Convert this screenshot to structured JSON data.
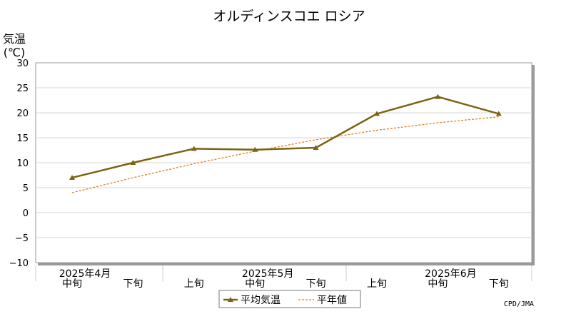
{
  "chart_data": {
    "type": "line",
    "title": "オルディンスコエ ロシア",
    "ylabel_line1": "気温",
    "ylabel_line2": "(℃)",
    "ylim": [
      -10,
      30
    ],
    "yticks": [
      30,
      25,
      20,
      15,
      10,
      5,
      0,
      -5,
      -10
    ],
    "x": [
      "中旬",
      "下旬",
      "上旬",
      "中旬",
      "下旬",
      "上旬",
      "中旬",
      "下旬"
    ],
    "month_labels": [
      "2025年4月",
      "2025年5月",
      "2025年6月"
    ],
    "series": [
      {
        "name": "平均気温",
        "color": "#7a6414",
        "style": "solid",
        "marker": "triangle",
        "values": [
          7.0,
          10.0,
          12.8,
          12.6,
          13.0,
          19.8,
          23.2,
          19.8
        ]
      },
      {
        "name": "平年値",
        "color": "#e67e22",
        "style": "dashed",
        "marker": "none",
        "values": [
          4.0,
          7.0,
          9.8,
          12.3,
          14.6,
          16.5,
          18.0,
          19.2
        ]
      }
    ],
    "grid": true,
    "legend_placement": "bottom-center",
    "credit": "CPD/JMA"
  }
}
